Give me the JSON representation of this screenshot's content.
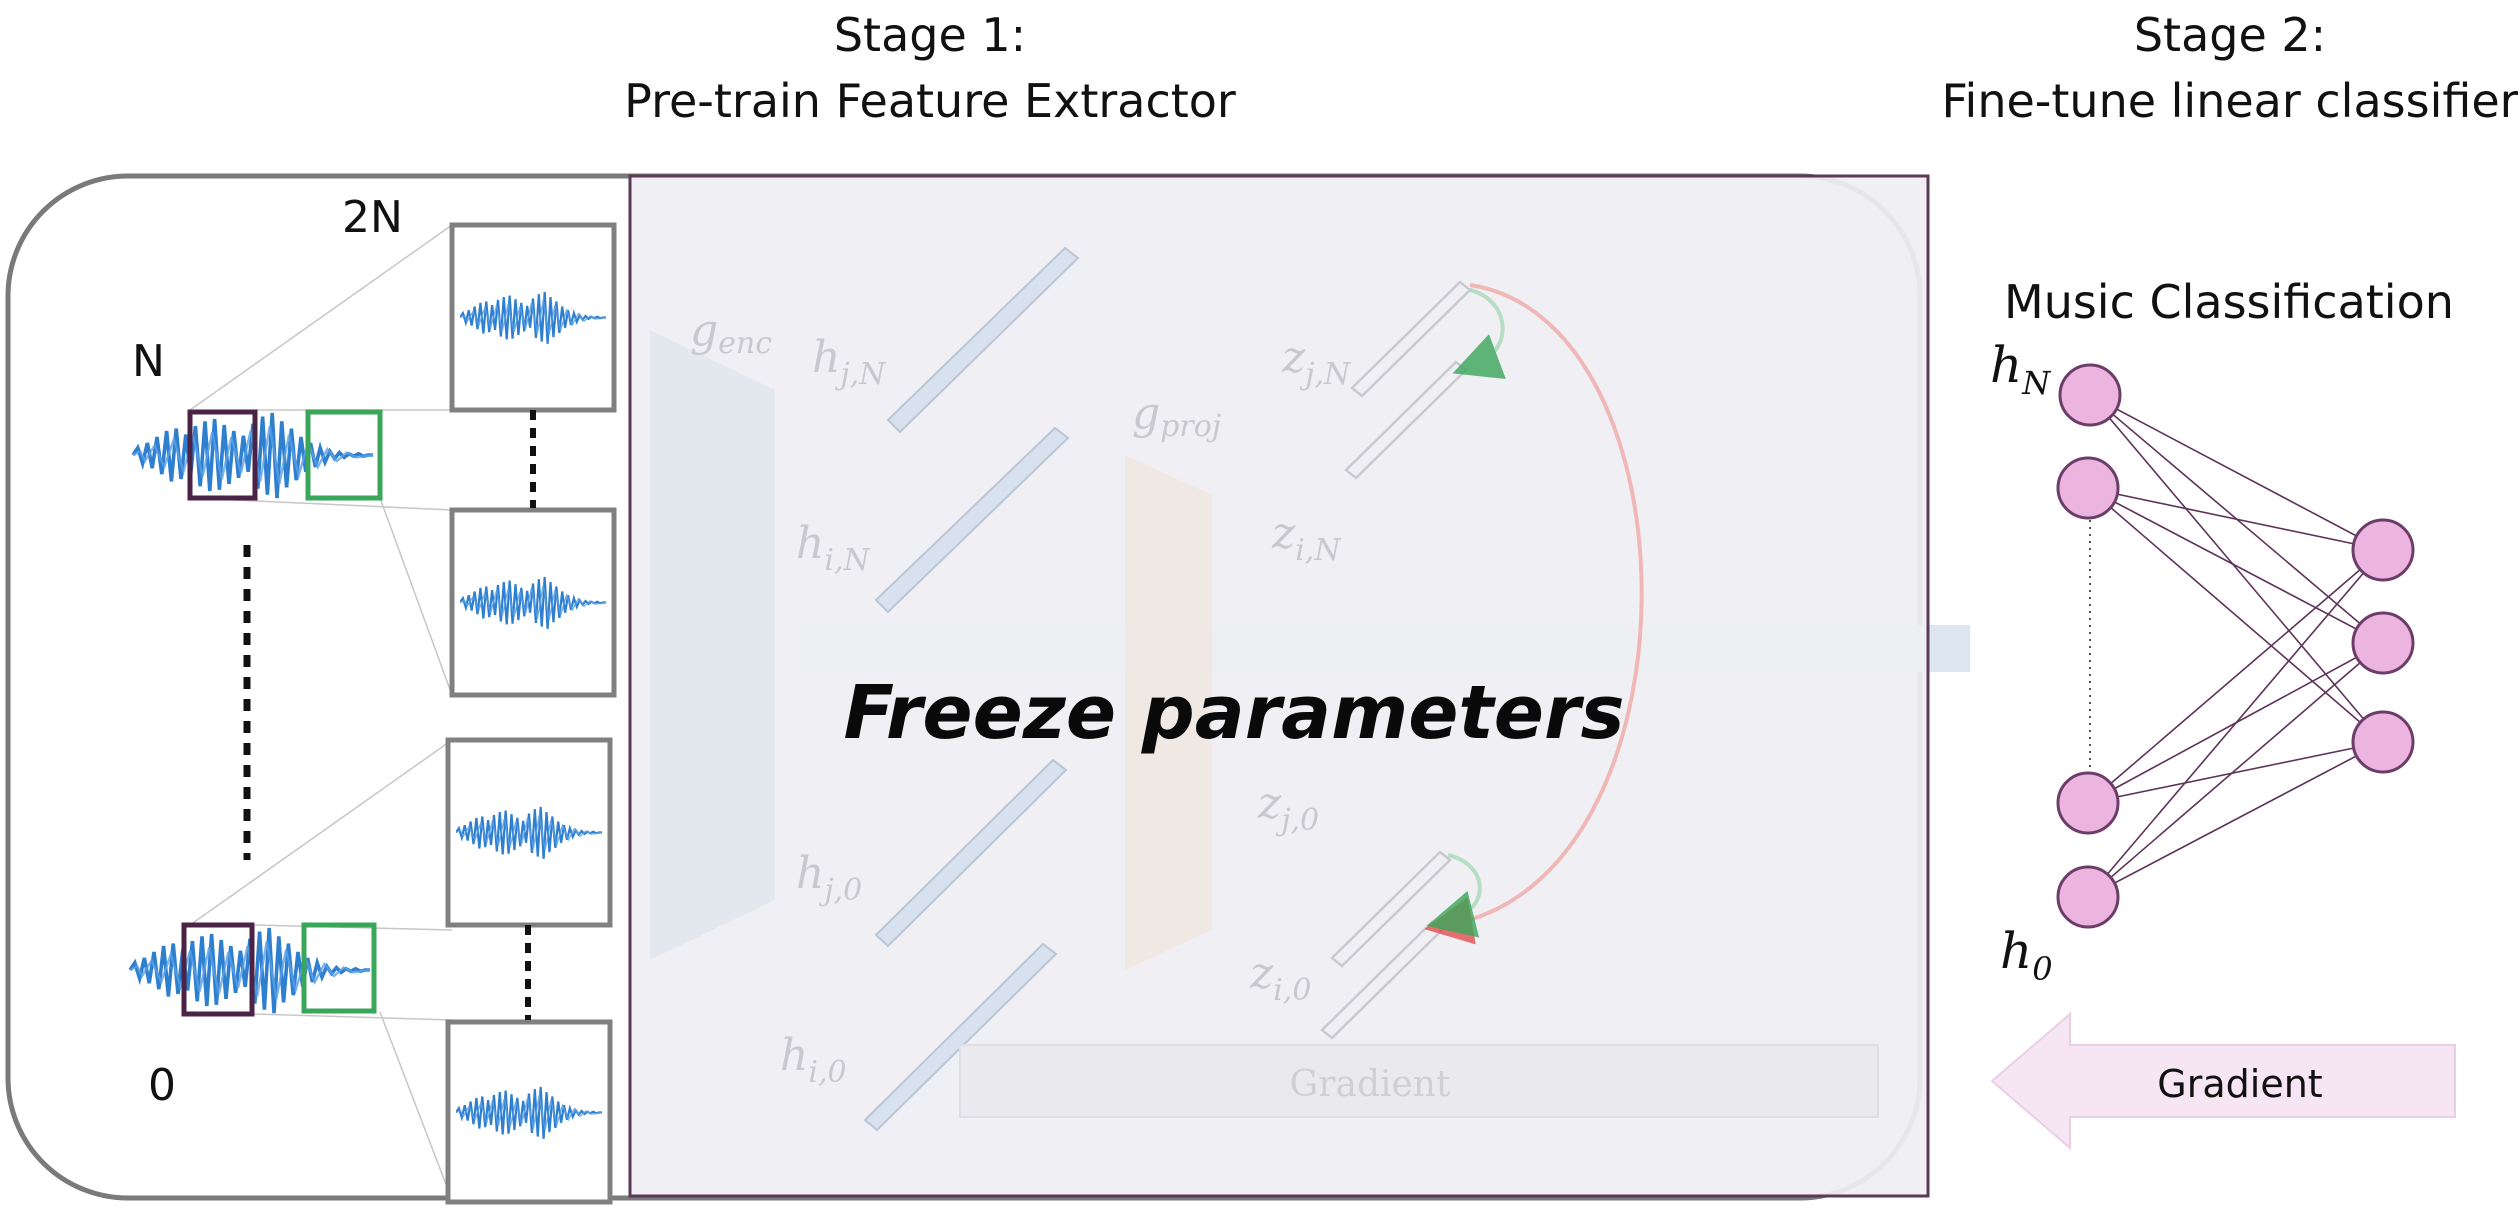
{
  "stage1": {
    "line1": "Stage 1:",
    "line2": "Pre-train Feature Extractor"
  },
  "stage2": {
    "line1": "Stage 2:",
    "line2": "Fine-tune linear classifier"
  },
  "audio": {
    "label_2n": "2N",
    "label_n": "N",
    "label_0": "0"
  },
  "encoder": {
    "g_enc": "g",
    "g_enc_sub": "enc",
    "g_proj": "g",
    "g_proj_sub": "proj"
  },
  "features": {
    "h_jN": "h",
    "h_jN_sub": "j,N",
    "h_iN": "h",
    "h_iN_sub": "i,N",
    "h_j0": "h",
    "h_j0_sub": "j,0",
    "h_i0": "h",
    "h_i0_sub": "i,0",
    "z_jN": "z",
    "z_jN_sub": "j,N",
    "z_iN": "z",
    "z_iN_sub": "i,N",
    "z_j0": "z",
    "z_j0_sub": "j,0",
    "z_i0": "z",
    "z_i0_sub": "i,0"
  },
  "overlay": {
    "freeze_text": "Freeze parameters",
    "gradient_faded": "Gradient"
  },
  "classifier": {
    "title": "Music Classification",
    "h_N": "h",
    "h_N_sub": "N",
    "h_0": "h",
    "h_0_sub": "0",
    "gradient_label": "Gradient"
  },
  "colors": {
    "waveform": "#2f7fd0",
    "crop_purple": "#4a2346",
    "crop_green": "#3aa65a",
    "node_fill": "#ecb5e0",
    "node_stroke": "#6b3d68",
    "overlay": "#efeff3",
    "arrow_blue": "#dde6f0",
    "gradient_pink": "#f6e6f4"
  }
}
